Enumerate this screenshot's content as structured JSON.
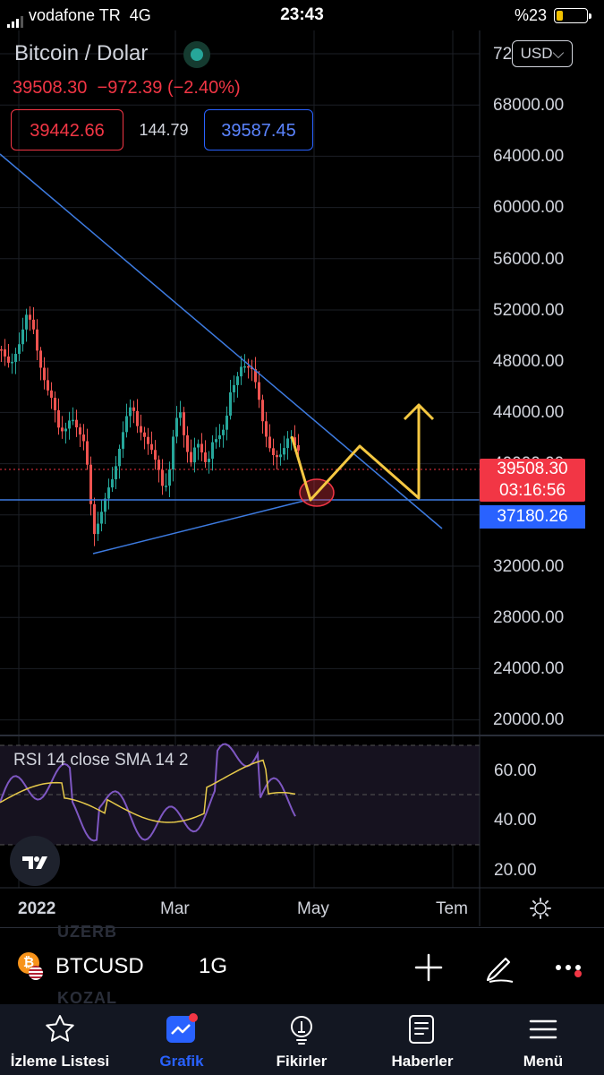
{
  "status_bar": {
    "carrier": "vodafone TR",
    "network": "4G",
    "time": "23:43",
    "battery": "%23",
    "battery_level_pct": 23
  },
  "header": {
    "title": "Bitcoin / Dolar",
    "last_price": "39508.30",
    "change": "−972.39",
    "change_pct": "(−2.40%)",
    "sell_price": "39442.66",
    "spread": "144.79",
    "buy_price": "39587.45",
    "currency": "USD"
  },
  "price_axis": {
    "ticks": [
      "72000.00",
      "68000.00",
      "64000.00",
      "60000.00",
      "56000.00",
      "52000.00",
      "48000.00",
      "44000.00",
      "40000.00",
      "32000.00",
      "28000.00",
      "24000.00",
      "20000.00"
    ],
    "last_price_tag": "39508.30",
    "countdown": "03:16:56",
    "horizontal_line_tag": "37180.26"
  },
  "rsi": {
    "label": "RSI 14 close SMA 14 2",
    "ticks": [
      "60.00",
      "40.00",
      "20.00"
    ]
  },
  "time_axis": {
    "labels": [
      "2022",
      "Mar",
      "May",
      "Tem"
    ]
  },
  "symbol_bar": {
    "symbol": "BTCUSD",
    "interval": "1G",
    "ghost_top": "UZERB",
    "ghost_bottom": "KOZAL"
  },
  "nav": {
    "items": [
      "İzleme Listesi",
      "Grafik",
      "Fikirler",
      "Haberler",
      "Menü"
    ],
    "active": "Grafik"
  },
  "colors": {
    "up": "#26a69a",
    "down": "#ef5350",
    "accent": "#2962ff",
    "trendline": "#3d7be0",
    "projection": "#f5c842",
    "rsi": "#7e57c2",
    "rsi_ma": "#e6c94a"
  }
}
